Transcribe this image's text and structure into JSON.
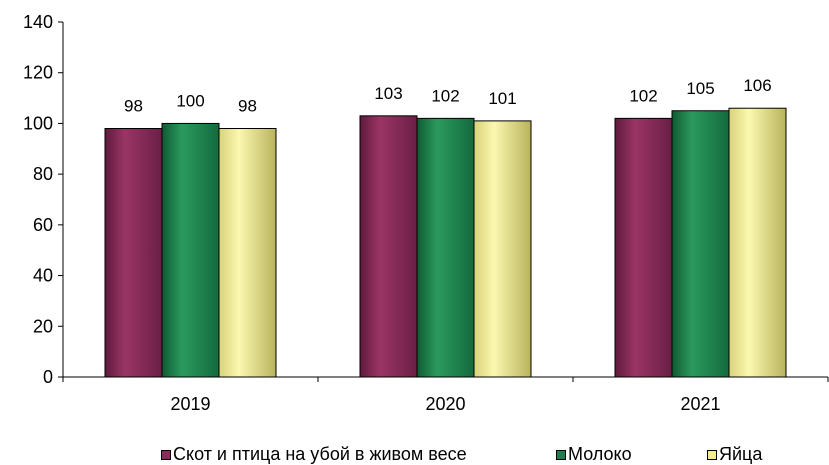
{
  "chart_data": {
    "type": "bar",
    "categories": [
      "2019",
      "2020",
      "2021"
    ],
    "series": [
      {
        "name": "Скот и птица на убой в живом весе",
        "values": [
          98,
          103,
          102
        ],
        "color": "#8B2B5B"
      },
      {
        "name": "Молоко",
        "values": [
          100,
          102,
          105
        ],
        "color": "#1F7F4C"
      },
      {
        "name": "Яйца",
        "values": [
          98,
          101,
          106
        ],
        "color": "#F2EE8C"
      }
    ],
    "ylim": [
      0,
      140
    ],
    "yticks": [
      "0",
      "20",
      "40",
      "60",
      "80",
      "100",
      "120",
      "140"
    ],
    "data_labels": true,
    "grid": false,
    "legend_position": "bottom"
  }
}
